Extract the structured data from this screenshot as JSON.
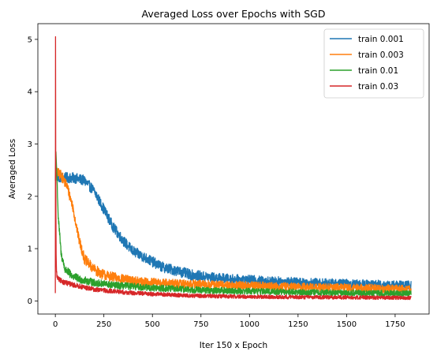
{
  "chart_data": {
    "type": "line",
    "title": "Averaged Loss over Epochs with SGD",
    "xlabel": "Iter 150 x Epoch",
    "ylabel": "Averaged Loss",
    "xlim": [
      -90,
      1925
    ],
    "ylim": [
      -0.25,
      5.3
    ],
    "xticks": [
      0,
      250,
      500,
      750,
      1000,
      1250,
      1500,
      1750
    ],
    "yticks": [
      0,
      1,
      2,
      3,
      4,
      5
    ],
    "grid": false,
    "legend_position": "top-right",
    "num_points": 1833,
    "series": [
      {
        "name": "train 0.001",
        "color": "#1f77b4",
        "noise": 0.1,
        "x": [
          0,
          2,
          5,
          30,
          100,
          150,
          200,
          250,
          300,
          350,
          400,
          450,
          500,
          550,
          600,
          700,
          800,
          900,
          1000,
          1100,
          1200,
          1300,
          1400,
          1500,
          1600,
          1700,
          1833
        ],
        "y": [
          2.35,
          2.4,
          2.37,
          2.36,
          2.35,
          2.3,
          2.1,
          1.75,
          1.4,
          1.15,
          0.95,
          0.85,
          0.75,
          0.65,
          0.6,
          0.5,
          0.45,
          0.42,
          0.4,
          0.38,
          0.37,
          0.35,
          0.34,
          0.33,
          0.32,
          0.31,
          0.3
        ]
      },
      {
        "name": "train 0.003",
        "color": "#ff7f0e",
        "noise": 0.1,
        "x": [
          0,
          3,
          10,
          30,
          60,
          90,
          120,
          150,
          200,
          250,
          300,
          400,
          500,
          700,
          900,
          1100,
          1300,
          1500,
          1700,
          1833
        ],
        "y": [
          2.3,
          2.45,
          2.45,
          2.4,
          2.2,
          1.8,
          1.2,
          0.8,
          0.6,
          0.5,
          0.45,
          0.38,
          0.35,
          0.32,
          0.3,
          0.28,
          0.26,
          0.25,
          0.24,
          0.22
        ]
      },
      {
        "name": "train 0.01",
        "color": "#2ca02c",
        "noise": 0.08,
        "x": [
          0,
          3,
          8,
          15,
          30,
          50,
          80,
          120,
          200,
          300,
          500,
          800,
          1100,
          1400,
          1833
        ],
        "y": [
          2.3,
          2.85,
          2.4,
          1.6,
          0.9,
          0.6,
          0.5,
          0.42,
          0.35,
          0.3,
          0.25,
          0.2,
          0.18,
          0.16,
          0.14
        ]
      },
      {
        "name": "train 0.03",
        "color": "#d62728",
        "noise": 0.055,
        "x": [
          0,
          1,
          2,
          4,
          6,
          10,
          20,
          50,
          100,
          200,
          400,
          700,
          1000,
          1400,
          1833
        ],
        "y": [
          0.15,
          5.05,
          2.6,
          0.9,
          0.55,
          0.45,
          0.4,
          0.35,
          0.3,
          0.22,
          0.15,
          0.1,
          0.08,
          0.07,
          0.06
        ]
      }
    ]
  }
}
